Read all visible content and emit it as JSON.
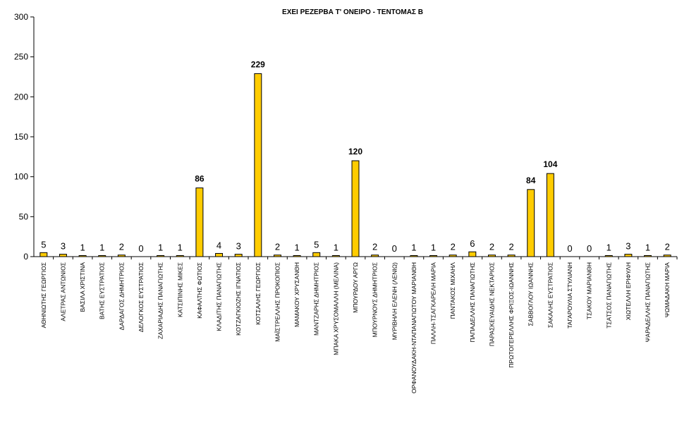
{
  "chart_data": {
    "type": "bar",
    "title": "ΕΧΕΙ ΡΕΖΕΡΒΑ Τ' ΟΝΕΙΡΟ - ΤΕΝΤΟΜΑΣ Β",
    "xlabel": "",
    "ylabel": "",
    "ylim": [
      0,
      300
    ],
    "yticks": [
      0,
      50,
      100,
      150,
      200,
      250,
      300
    ],
    "grid": false,
    "legend": "none",
    "bar_color": "#ffcc00",
    "categories": [
      "ΑΘΗΝΙΩΤΗΣ ΓΕΩΡΓΙΟΣ",
      "ΑΛΕΤΡΑΣ ΑΝΤΩΝΙΟΣ",
      "ΒΑΣΙΛΑ ΧΡΙΣΤΙΝΑ",
      "ΒΑΤΗΣ ΕΥΣΤΡΑΤΙΟΣ",
      "ΔΑΡΔΑΓΟΣ ΔΗΜΗΤΡΙΟΣ",
      "ΔΕΛΟΓΚΟΣ ΕΥΣΤΡΑΤΙΟΣ",
      "ΖΑΧΑΡΙΑΔΗΣ ΠΑΝΑΓΙΩΤΗΣ",
      "ΚΑΤΣΙΠΙΝΗΣ ΜΙΚΕΣ",
      "ΚΑΦΑΛΤΗΣ ΦΩΤΙΟΣ",
      "ΚΛΑΔΙΤΗΣ ΠΑΝΑΓΙΩΤΗΣ",
      "ΚΟΤΖΑΓΚΙΟΖΗΣ ΙΓΝΑΤΙΟΣ",
      "ΚΟΤΣΑΛΗΣ ΓΕΩΡΓΙΟΣ",
      "ΜΑΪΣΤΡΕΛΛΗΣ ΠΡΟΚΟΠΙΟΣ",
      "ΜΑΜΑΚΟΥ ΧΡΥΣΑΝΘΗ",
      "ΜΑΝΤΖΑΡΗΣ ΔΗΜΗΤΡΙΟΣ",
      "ΜΠΑΚΑ ΧΡΥΣΟΜΑΛΛΗ (ΜΕΛΙΝΑ)",
      "ΜΠΟΥΡΔΟΥ ΑΡΓΩ",
      "ΜΠΟΥΡΝΟΥΣ ΔΗΜΗΤΡΙΟΣ",
      "ΜΥΡΙΒΗΛΗ ΕΛΕΝΗ (ΛΕΝΙΩ)",
      "ΟΡΦΑΝΟΥΔΑΚΗ-ΝΤΑΠΑΝΑΓΙΩΤΟΥ ΜΑΡΙΑΝΘΗ",
      "ΠΑΛΛΗ-ΤΣΑΓΚΑΡΕΛΗ ΜΑΡΙΑ",
      "ΠΑΝΤΑΚΟΣ ΜΙΧΑΗΛ",
      "ΠΑΠΑΔΕΛΛΗΣ ΠΑΝΑΓΙΩΤΗΣ",
      "ΠΑΡΑΣΚΕΥΑΙΔΗΣ ΝΕΚΤΑΡΙΟΣ",
      "ΠΡΩΤΟΓΕΡΕΛΛΗΣ ΦΡΙΞΟΣ-ΙΩΑΝΝΗΣ",
      "ΣΑΒΒΟΓΛΟΥ ΙΩΑΝΝΗΣ",
      "ΣΑΚΑΛΗΣ ΕΥΣΤΡΑΤΙΟΣ",
      "ΤΑΓΑΡΟΥΛΙΑ ΣΤΥΛΙΑΝΗ",
      "ΤΣΑΚΟΥ ΜΑΡΙΑΝΘΗ",
      "ΤΣΑΤΣΟΣ ΠΑΝΑΓΙΩΤΗΣ",
      "ΧΙΩΤΕΛΛΗ ΕΡΙΦΥΛΗ",
      "ΨΑΡΑΔΕΛΛΗΣ ΠΑΝΑΓΙΩΤΗΣ",
      "ΨΩΜΑΔΑΚΗ ΜΑΡΙΑ"
    ],
    "values": [
      5,
      3,
      1,
      1,
      2,
      0,
      1,
      1,
      86,
      4,
      3,
      229,
      2,
      1,
      5,
      1,
      120,
      2,
      0,
      1,
      1,
      2,
      6,
      2,
      2,
      84,
      104,
      0,
      0,
      1,
      3,
      1,
      2
    ]
  }
}
